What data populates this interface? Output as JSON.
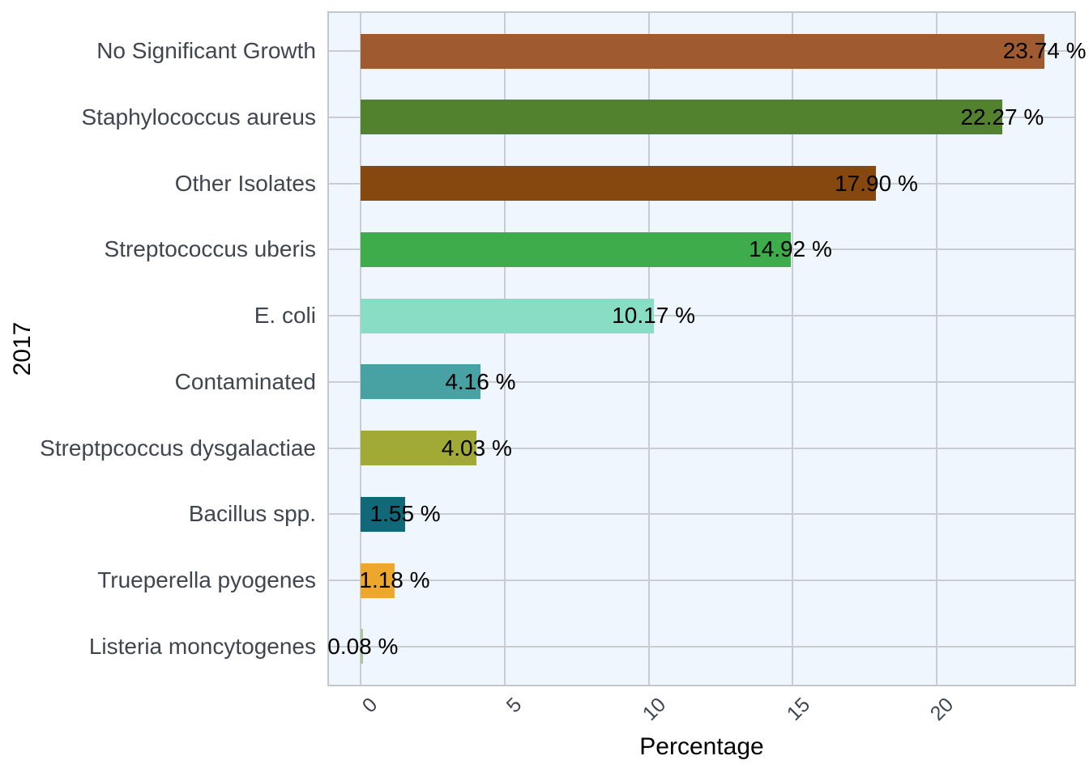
{
  "figure": {
    "x_axis_title": "Percentage",
    "y_axis_title": "2017"
  },
  "chart_data": {
    "type": "bar",
    "orientation": "horizontal",
    "title": "",
    "xlabel": "Percentage",
    "ylabel": "2017",
    "categories": [
      "No Significant Growth",
      "Staphylococcus aureus",
      "Other Isolates",
      "Streptococcus uberis",
      "E. coli",
      "Contaminated",
      "Streptpcoccus dysgalactiae",
      "Bacillus spp.",
      "Trueperella pyogenes",
      "Listeria moncytogenes"
    ],
    "values": [
      23.74,
      22.27,
      17.9,
      14.92,
      10.17,
      4.16,
      4.03,
      1.55,
      1.18,
      0.08
    ],
    "value_labels": [
      "23.74 %",
      "22.27 %",
      "17.90 %",
      "14.92 %",
      "10.17 %",
      "4.16 %",
      "4.03 %",
      "1.55 %",
      "1.18 %",
      "0.08 %"
    ],
    "bar_colors": [
      "#A05A30",
      "#53822F",
      "#87480F",
      "#3EAC4B",
      "#87DEC4",
      "#48A2A3",
      "#A1AA34",
      "#106878",
      "#ECA72C",
      "#AFC39D"
    ],
    "x_ticks": [
      "0",
      "5",
      "10",
      "15",
      "20"
    ],
    "x_tick_values": [
      0,
      5,
      10,
      15,
      20
    ],
    "xlim": [
      -1.2,
      24.8
    ],
    "grid": "major",
    "legend_position": "none",
    "colors": {
      "figure_bg": "#FFFFFF",
      "panel_bg": "#EFF6FD",
      "grid": "#C9CCD1",
      "panel_border": "#C3C7CA",
      "axis_text": "#3F4650",
      "value_label_text": "#000000",
      "axis_title_text": "#000000"
    }
  }
}
